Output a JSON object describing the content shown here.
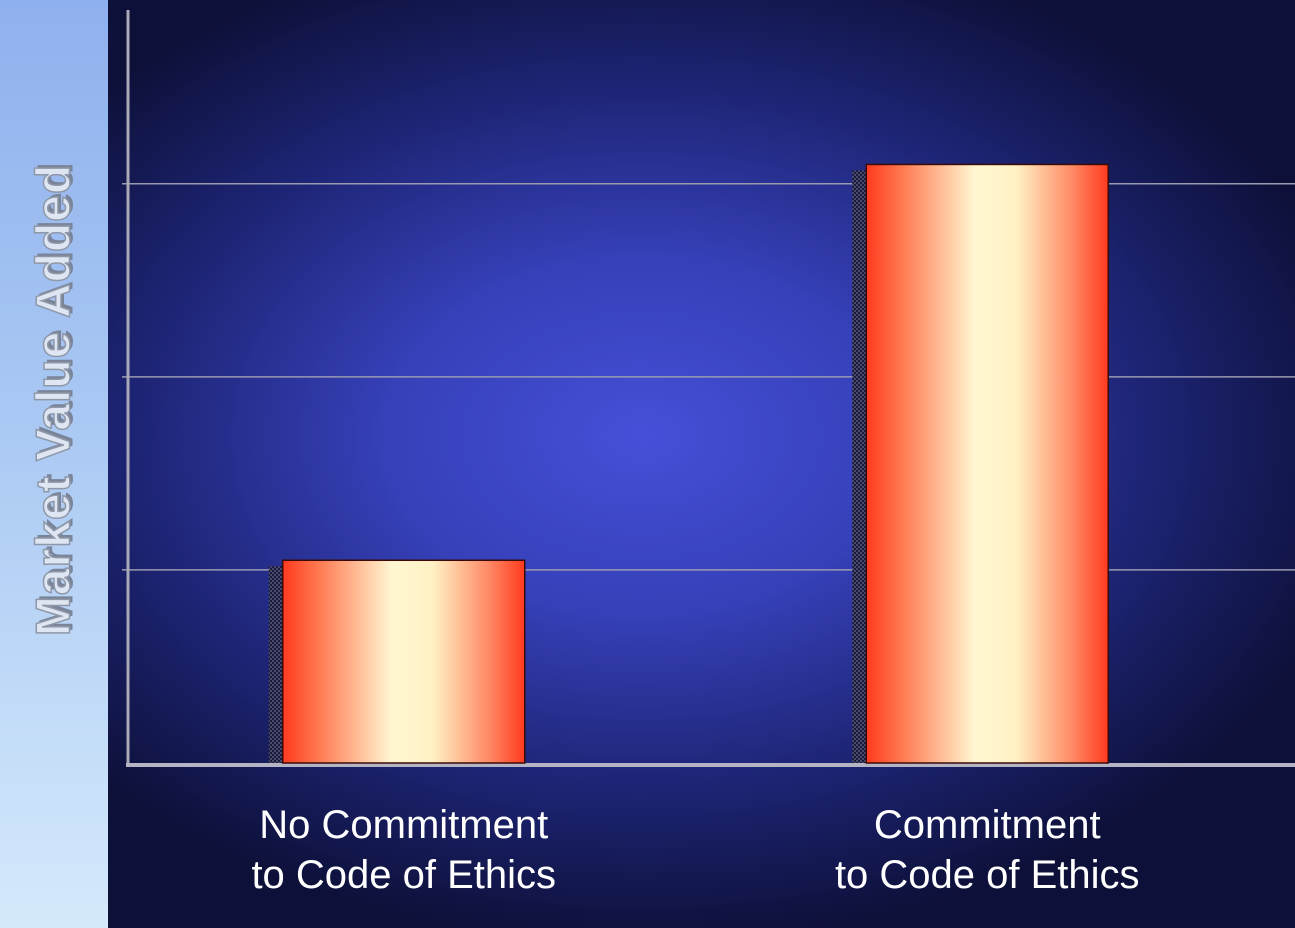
{
  "chart_data": {
    "type": "bar",
    "title": "",
    "ylabel": "Market Value Added",
    "categories": [
      [
        "No Commitment",
        "to Code of Ethics"
      ],
      [
        "Commitment",
        "to Code of Ethics"
      ]
    ],
    "values": [
      1.05,
      3.1
    ],
    "ylim": [
      0,
      3.9
    ],
    "grid": true,
    "y_tick_labels": "none",
    "bar_gradient": [
      "#ff3a1e",
      "#fff7d0",
      "#ff3a1e"
    ],
    "background_colors": [
      "#4450d8",
      "#0d1038"
    ]
  }
}
